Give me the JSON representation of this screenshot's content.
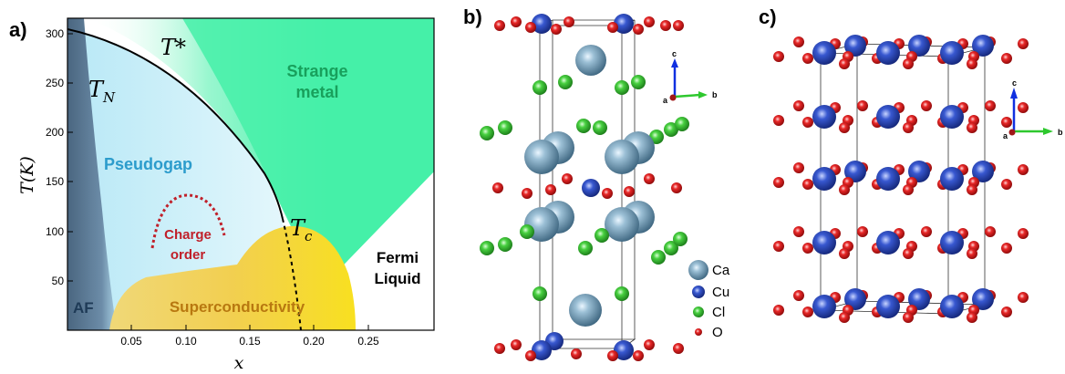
{
  "panels": {
    "a": "a)",
    "b": "b)",
    "c": "c)"
  },
  "phase_diagram": {
    "x_axis_label": "x",
    "y_axis_label": "T(K)",
    "x_ticks": [
      "0.05",
      "0.10",
      "0.15",
      "0.20",
      "0.25"
    ],
    "y_ticks": [
      "50",
      "100",
      "150",
      "200",
      "250",
      "300"
    ],
    "curve_labels": {
      "t_star": "T*",
      "t_n_main": "T",
      "t_n_sub": "N",
      "t_c_main": "T",
      "t_c_sub": "c"
    },
    "regions": {
      "strange_metal_1": "Strange",
      "strange_metal_2": "metal",
      "pseudogap": "Pseudogap",
      "charge_order_1": "Charge",
      "charge_order_2": "order",
      "fermi_liquid_1": "Fermi",
      "fermi_liquid_2": "Liquid",
      "af": "AF",
      "superconductivity": "Superconductivity"
    },
    "colors": {
      "strange_metal": "#45f0a8",
      "pseudogap": "#c4eef8",
      "antiferromagnet": "#5b7a96",
      "superconductivity": "#f0c840",
      "charge_order": "#c0202a"
    }
  },
  "structure_b": {
    "legend": [
      "Ca",
      "Cu",
      "Cl",
      "O"
    ],
    "axes": {
      "c": "c",
      "a": "a",
      "b": "b"
    }
  },
  "structure_c": {
    "axes": {
      "c": "c",
      "a": "a",
      "b": "b"
    }
  },
  "atom_colors": {
    "Ca": "#6e9ab4",
    "Cu": "#2a48c0",
    "Cl": "#3cc83c",
    "O": "#e02020"
  }
}
